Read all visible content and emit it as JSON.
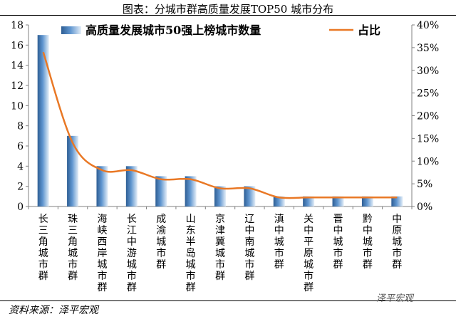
{
  "title": "图表：分城市群高质量发展TOP50 城市分布",
  "source": "资料来源：泽平宏观",
  "watermark": "泽平宏观",
  "chart_data": {
    "type": "bar",
    "categories": [
      "长三角城市群",
      "珠三角城市群",
      "海峡西岸城市群",
      "长江中游城市群",
      "成渝城市群",
      "山东半岛城市群",
      "京津冀城市群",
      "辽中南城市群",
      "滇中城市群",
      "关中平原城市群",
      "晋中城市群",
      "黔中城市群",
      "中原城市群"
    ],
    "series": [
      {
        "name": "高质量发展城市50强上榜城市数量",
        "type": "bar",
        "axis": "left",
        "values": [
          17,
          7,
          4,
          4,
          3,
          3,
          2,
          2,
          1,
          1,
          1,
          1,
          1
        ]
      },
      {
        "name": "占比",
        "type": "line",
        "axis": "right",
        "values": [
          34,
          14,
          8,
          8,
          6,
          6,
          4,
          4,
          2,
          2,
          2,
          2,
          2
        ]
      }
    ],
    "y_left": {
      "range": [
        0,
        18
      ],
      "ticks": [
        "0",
        "2",
        "4",
        "6",
        "8",
        "10",
        "12",
        "14",
        "16",
        "18"
      ]
    },
    "y_right": {
      "range": [
        0,
        40
      ],
      "ticks": [
        "0%",
        "5%",
        "10%",
        "15%",
        "20%",
        "25%",
        "30%",
        "35%",
        "40%"
      ]
    },
    "legend_position": "top",
    "grid": false,
    "colors": {
      "bar_dark": "#2E5E94",
      "bar_mid": "#5F95CF",
      "bar_light": "#E4EEF8",
      "line": "#E97825",
      "axis": "#808080"
    }
  }
}
